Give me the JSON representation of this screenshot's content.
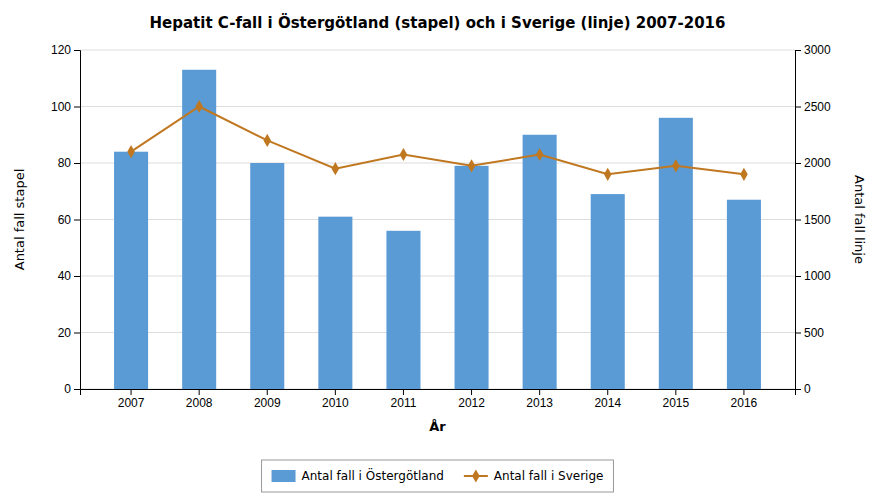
{
  "chart_data": {
    "type": "bar",
    "title": "Hepatit C-fall i Östergötland (stapel) och i Sverige (linje) 2007-2016",
    "x_label": "År",
    "y_label": "Antal fall stapel",
    "y2_label": "Antal fall linje",
    "categories": [
      "2007",
      "2008",
      "2009",
      "2010",
      "2011",
      "2012",
      "2013",
      "2014",
      "2015",
      "2016"
    ],
    "series": [
      {
        "name": "Antal fall i Östergötland",
        "type": "bar",
        "color": "#5B9BD5",
        "values": [
          84,
          113,
          80,
          61,
          56,
          79,
          90,
          69,
          96,
          67
        ]
      },
      {
        "name": "Antal fall i Sverige",
        "type": "line",
        "axis": "y2",
        "color": "#C07820",
        "marker": "diamond",
        "values": [
          2100,
          2500,
          2200,
          1950,
          2075,
          1975,
          2075,
          1900,
          1975,
          1900
        ]
      }
    ],
    "ylim": [
      0,
      120
    ],
    "yticks": [
      0,
      20,
      40,
      60,
      80,
      100,
      120
    ],
    "y2lim": [
      0,
      3000
    ],
    "y2ticks": [
      0,
      500,
      1000,
      1500,
      2000,
      2500,
      3000
    ],
    "grid": true,
    "legend": "bottom"
  }
}
